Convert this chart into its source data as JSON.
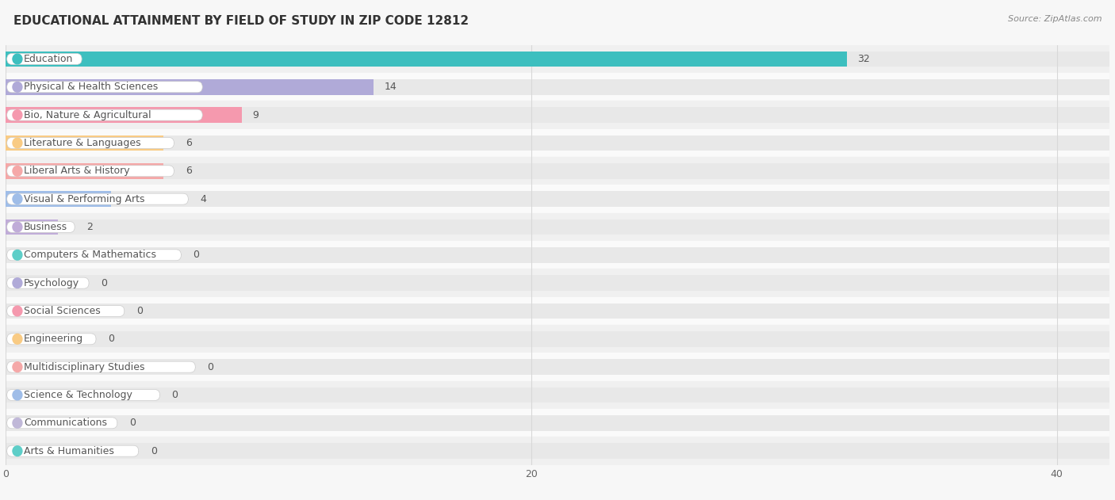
{
  "title": "EDUCATIONAL ATTAINMENT BY FIELD OF STUDY IN ZIP CODE 12812",
  "source": "Source: ZipAtlas.com",
  "categories": [
    "Education",
    "Physical & Health Sciences",
    "Bio, Nature & Agricultural",
    "Literature & Languages",
    "Liberal Arts & History",
    "Visual & Performing Arts",
    "Business",
    "Computers & Mathematics",
    "Psychology",
    "Social Sciences",
    "Engineering",
    "Multidisciplinary Studies",
    "Science & Technology",
    "Communications",
    "Arts & Humanities"
  ],
  "values": [
    32,
    14,
    9,
    6,
    6,
    4,
    2,
    0,
    0,
    0,
    0,
    0,
    0,
    0,
    0
  ],
  "bar_colors": [
    "#3dbfbf",
    "#b0aad8",
    "#f599ae",
    "#f9cb84",
    "#f5a8a8",
    "#9fbde8",
    "#c0acd8",
    "#5ecec8",
    "#b0aad8",
    "#f599ae",
    "#f9cb84",
    "#f5a8a8",
    "#9fbde8",
    "#c0b8d8",
    "#5ecec8"
  ],
  "xlim": [
    0,
    42
  ],
  "background_color": "#f7f7f7",
  "row_colors": [
    "#f0f0f0",
    "#fafafa"
  ],
  "title_fontsize": 11,
  "source_fontsize": 8,
  "tick_fontsize": 9,
  "value_fontsize": 9,
  "label_fontsize": 9,
  "bar_bg_color": "#e8e8e8",
  "pill_bg": "#ffffff",
  "text_color": "#555555",
  "grid_line_color": "#d8d8d8"
}
